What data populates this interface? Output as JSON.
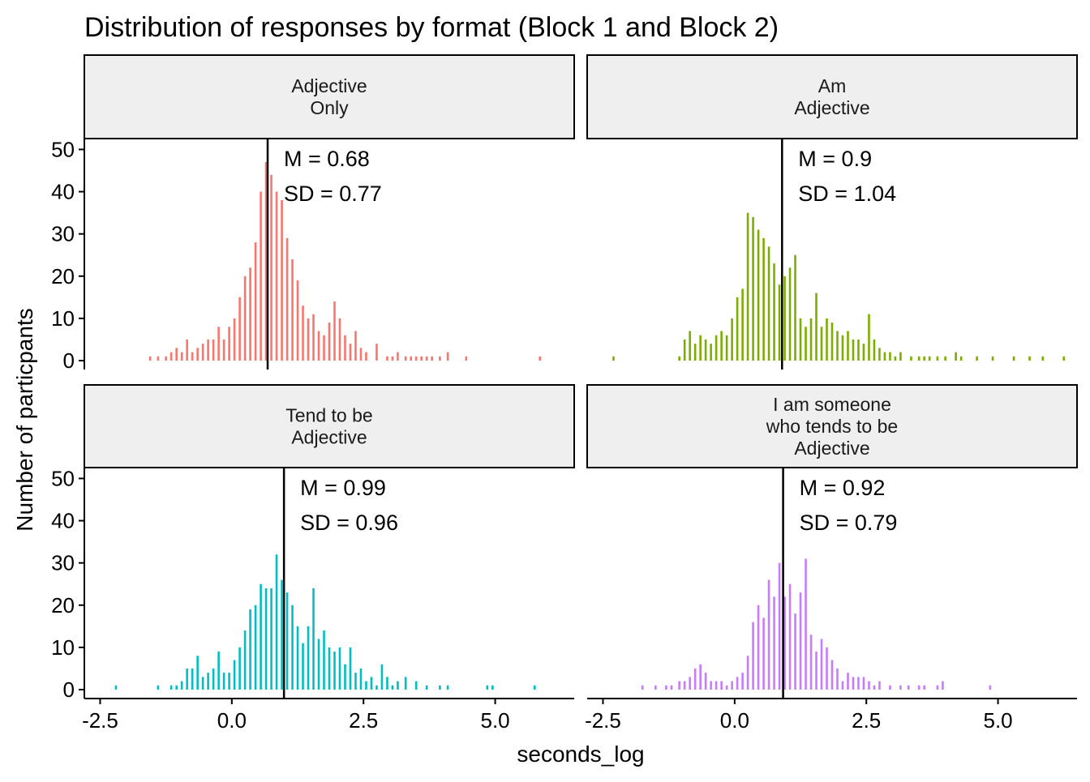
{
  "chart_data": {
    "type": "bar",
    "title": "Distribution of responses by format (Block 1 and Block 2)",
    "xlabel": "seconds_log",
    "ylabel": "Number of particpants",
    "xlim": [
      -2.8,
      6.5
    ],
    "ylim": [
      0,
      52
    ],
    "x_ticks": [
      -2.5,
      0.0,
      2.5,
      5.0
    ],
    "x_tick_labels": [
      "-2.5",
      "0.0",
      "2.5",
      "5.0"
    ],
    "y_ticks": [
      0,
      10,
      20,
      30,
      40,
      50
    ],
    "y_tick_labels": [
      "0",
      "10",
      "20",
      "30",
      "40",
      "50"
    ],
    "grid": false,
    "legend": "none",
    "panels": [
      {
        "strip": [
          "Adjective",
          "Only"
        ],
        "color": "#F8766D",
        "mean": 0.68,
        "mean_label": "M = 0.68",
        "sd_label": "SD = 0.77",
        "bins": [
          [
            -1.55,
            1
          ],
          [
            -1.4,
            1
          ],
          [
            -1.25,
            1
          ],
          [
            -1.15,
            2
          ],
          [
            -1.05,
            3
          ],
          [
            -0.95,
            2
          ],
          [
            -0.85,
            5
          ],
          [
            -0.75,
            2
          ],
          [
            -0.65,
            3
          ],
          [
            -0.55,
            4
          ],
          [
            -0.45,
            5
          ],
          [
            -0.35,
            5
          ],
          [
            -0.25,
            8
          ],
          [
            -0.15,
            5
          ],
          [
            -0.05,
            8
          ],
          [
            0.05,
            10
          ],
          [
            0.15,
            15
          ],
          [
            0.25,
            20
          ],
          [
            0.35,
            22
          ],
          [
            0.45,
            28
          ],
          [
            0.55,
            40
          ],
          [
            0.65,
            47
          ],
          [
            0.75,
            44
          ],
          [
            0.85,
            40
          ],
          [
            0.95,
            38
          ],
          [
            1.05,
            29
          ],
          [
            1.15,
            24
          ],
          [
            1.25,
            19
          ],
          [
            1.35,
            13
          ],
          [
            1.45,
            10
          ],
          [
            1.55,
            11
          ],
          [
            1.65,
            7
          ],
          [
            1.75,
            6
          ],
          [
            1.85,
            9
          ],
          [
            1.95,
            14
          ],
          [
            2.05,
            10
          ],
          [
            2.15,
            6
          ],
          [
            2.25,
            4
          ],
          [
            2.35,
            7
          ],
          [
            2.45,
            3
          ],
          [
            2.55,
            2
          ],
          [
            2.75,
            4
          ],
          [
            2.95,
            1
          ],
          [
            3.05,
            1
          ],
          [
            3.15,
            2
          ],
          [
            3.3,
            1
          ],
          [
            3.4,
            1
          ],
          [
            3.5,
            1
          ],
          [
            3.6,
            1
          ],
          [
            3.7,
            1
          ],
          [
            3.8,
            1
          ],
          [
            3.95,
            1
          ],
          [
            4.1,
            2
          ],
          [
            4.45,
            1
          ],
          [
            5.85,
            1
          ]
        ]
      },
      {
        "strip": [
          "Am",
          "Adjective"
        ],
        "color": "#7CAE00",
        "mean": 0.9,
        "mean_label": "M = 0.9",
        "sd_label": "SD = 1.04",
        "bins": [
          [
            -2.3,
            1
          ],
          [
            -1.05,
            1
          ],
          [
            -0.95,
            5
          ],
          [
            -0.85,
            7
          ],
          [
            -0.75,
            4
          ],
          [
            -0.65,
            6
          ],
          [
            -0.55,
            5
          ],
          [
            -0.45,
            4
          ],
          [
            -0.35,
            6
          ],
          [
            -0.25,
            7
          ],
          [
            -0.15,
            6
          ],
          [
            -0.05,
            10
          ],
          [
            0.05,
            15
          ],
          [
            0.15,
            17
          ],
          [
            0.25,
            35
          ],
          [
            0.35,
            34
          ],
          [
            0.45,
            31
          ],
          [
            0.55,
            29
          ],
          [
            0.65,
            27
          ],
          [
            0.75,
            23
          ],
          [
            0.85,
            18
          ],
          [
            0.95,
            20
          ],
          [
            1.05,
            22
          ],
          [
            1.15,
            25
          ],
          [
            1.25,
            10
          ],
          [
            1.35,
            8
          ],
          [
            1.45,
            10
          ],
          [
            1.55,
            16
          ],
          [
            1.65,
            8
          ],
          [
            1.75,
            10
          ],
          [
            1.85,
            9
          ],
          [
            1.95,
            7
          ],
          [
            2.05,
            6
          ],
          [
            2.15,
            7
          ],
          [
            2.25,
            5
          ],
          [
            2.35,
            5
          ],
          [
            2.45,
            4
          ],
          [
            2.55,
            11
          ],
          [
            2.65,
            5
          ],
          [
            2.75,
            3
          ],
          [
            2.85,
            2
          ],
          [
            2.95,
            2
          ],
          [
            3.05,
            1
          ],
          [
            3.15,
            2
          ],
          [
            3.35,
            1
          ],
          [
            3.5,
            1
          ],
          [
            3.6,
            1
          ],
          [
            3.7,
            1
          ],
          [
            3.85,
            1
          ],
          [
            4.0,
            1
          ],
          [
            4.2,
            2
          ],
          [
            4.3,
            1
          ],
          [
            4.6,
            1
          ],
          [
            4.9,
            1
          ],
          [
            5.3,
            1
          ],
          [
            5.6,
            1
          ],
          [
            5.85,
            1
          ],
          [
            6.25,
            1
          ]
        ]
      },
      {
        "strip": [
          "Tend to be",
          "Adjective"
        ],
        "color": "#00BFC4",
        "mean": 0.99,
        "mean_label": "M = 0.99",
        "sd_label": "SD = 0.96",
        "bins": [
          [
            -2.2,
            1
          ],
          [
            -1.4,
            1
          ],
          [
            -1.15,
            1
          ],
          [
            -1.05,
            1
          ],
          [
            -0.95,
            2
          ],
          [
            -0.85,
            5
          ],
          [
            -0.75,
            5
          ],
          [
            -0.65,
            8
          ],
          [
            -0.55,
            3
          ],
          [
            -0.45,
            4
          ],
          [
            -0.35,
            5
          ],
          [
            -0.25,
            9
          ],
          [
            -0.15,
            4
          ],
          [
            -0.05,
            4
          ],
          [
            0.05,
            7
          ],
          [
            0.15,
            10
          ],
          [
            0.25,
            14
          ],
          [
            0.35,
            19
          ],
          [
            0.45,
            20
          ],
          [
            0.55,
            25
          ],
          [
            0.65,
            24
          ],
          [
            0.75,
            24
          ],
          [
            0.85,
            32
          ],
          [
            0.95,
            26
          ],
          [
            1.05,
            23
          ],
          [
            1.15,
            20
          ],
          [
            1.25,
            15
          ],
          [
            1.35,
            11
          ],
          [
            1.45,
            15
          ],
          [
            1.55,
            24
          ],
          [
            1.65,
            12
          ],
          [
            1.75,
            14
          ],
          [
            1.85,
            10
          ],
          [
            1.95,
            9
          ],
          [
            2.05,
            10
          ],
          [
            2.15,
            6
          ],
          [
            2.25,
            10
          ],
          [
            2.35,
            4
          ],
          [
            2.45,
            5
          ],
          [
            2.55,
            2
          ],
          [
            2.65,
            3
          ],
          [
            2.75,
            1
          ],
          [
            2.85,
            6
          ],
          [
            2.95,
            3
          ],
          [
            3.05,
            1
          ],
          [
            3.15,
            2
          ],
          [
            3.3,
            3
          ],
          [
            3.5,
            2
          ],
          [
            3.7,
            1
          ],
          [
            3.95,
            1
          ],
          [
            4.1,
            1
          ],
          [
            4.85,
            1
          ],
          [
            4.95,
            1
          ],
          [
            5.75,
            1
          ]
        ]
      },
      {
        "strip": [
          "I am someone",
          "who tends to be",
          "Adjective"
        ],
        "color": "#C77CFF",
        "mean": 0.92,
        "mean_label": "M = 0.92",
        "sd_label": "SD = 0.79",
        "bins": [
          [
            -1.75,
            1
          ],
          [
            -1.5,
            1
          ],
          [
            -1.3,
            1
          ],
          [
            -1.2,
            1
          ],
          [
            -1.05,
            2
          ],
          [
            -0.95,
            2
          ],
          [
            -0.85,
            3
          ],
          [
            -0.75,
            5
          ],
          [
            -0.65,
            6
          ],
          [
            -0.55,
            4
          ],
          [
            -0.45,
            2
          ],
          [
            -0.35,
            2
          ],
          [
            -0.25,
            2
          ],
          [
            -0.15,
            1
          ],
          [
            -0.05,
            2
          ],
          [
            0.05,
            3
          ],
          [
            0.15,
            4
          ],
          [
            0.25,
            8
          ],
          [
            0.35,
            16
          ],
          [
            0.45,
            20
          ],
          [
            0.55,
            17
          ],
          [
            0.65,
            26
          ],
          [
            0.75,
            22
          ],
          [
            0.85,
            30
          ],
          [
            0.95,
            22
          ],
          [
            1.05,
            25
          ],
          [
            1.15,
            18
          ],
          [
            1.25,
            23
          ],
          [
            1.35,
            31
          ],
          [
            1.45,
            13
          ],
          [
            1.55,
            9
          ],
          [
            1.65,
            12
          ],
          [
            1.75,
            10
          ],
          [
            1.85,
            7
          ],
          [
            1.95,
            5
          ],
          [
            2.05,
            2
          ],
          [
            2.15,
            4
          ],
          [
            2.25,
            3
          ],
          [
            2.35,
            3
          ],
          [
            2.45,
            3
          ],
          [
            2.55,
            2
          ],
          [
            2.65,
            1
          ],
          [
            2.75,
            2
          ],
          [
            2.95,
            1
          ],
          [
            3.15,
            1
          ],
          [
            3.3,
            1
          ],
          [
            3.5,
            1
          ],
          [
            3.6,
            1
          ],
          [
            3.85,
            1
          ],
          [
            3.95,
            2
          ],
          [
            4.85,
            1
          ]
        ]
      }
    ]
  }
}
